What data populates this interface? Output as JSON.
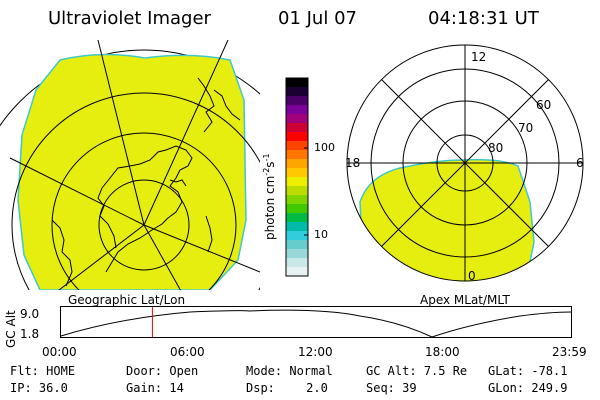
{
  "header": {
    "instrument": "Ultraviolet Imager",
    "date": "01 Jul 07",
    "time": "04:18:31 UT"
  },
  "left_map": {
    "caption": "Geographic Lat/Lon"
  },
  "right_map": {
    "caption": "Apex MLat/MLT",
    "mlt_labels": {
      "top": "12",
      "left": "18",
      "right": "6",
      "bottom": "0"
    },
    "lat_labels": [
      "60",
      "70",
      "80"
    ]
  },
  "colorbar": {
    "unit_base": "photon cm",
    "unit_exp1": "-2",
    "unit_s": "s",
    "unit_exp2": "-1",
    "ticks": [
      "100",
      "10"
    ],
    "colors": [
      "#000000",
      "#1a0033",
      "#4a0066",
      "#7a0099",
      "#a0007a",
      "#cc0033",
      "#ff0000",
      "#ff4400",
      "#ff7700",
      "#ffa500",
      "#ffc800",
      "#eeee00",
      "#bbdd00",
      "#7fd400",
      "#40c800",
      "#00bb44",
      "#00bbaa",
      "#33ccdd",
      "#66cccc",
      "#99d8d8",
      "#c8e8e8",
      "#e8f2f2"
    ]
  },
  "altitude_plot": {
    "ylabel": "GC Alt",
    "y_ticks": [
      "9.0",
      "1.8"
    ],
    "x_ticks": [
      "00:00",
      "06:00",
      "12:00",
      "18:00",
      "23:59"
    ],
    "current_time_hours": 4.3
  },
  "status": {
    "flt_label": "Flt:",
    "flt_value": "HOME",
    "ip_label": "IP:",
    "ip_value": "36.0",
    "door_label": "Door:",
    "door_value": "Open",
    "gain_label": "Gain:",
    "gain_value": "14",
    "mode_label": "Mode:",
    "mode_value": "Normal",
    "dsp_label": "Dsp:",
    "dsp_value": "2.0",
    "gcalt_label": "GC Alt:",
    "gcalt_value": "7.5 Re",
    "seq_label": "Seq:",
    "seq_value": "39",
    "glat_label": "GLat:",
    "glat_value": "-78.1",
    "glon_label": "GLon:",
    "glon_value": "249.9"
  },
  "colors": {
    "fill": "#e6ee10",
    "fill_edge": "#40c8c8",
    "marker": "#ee0000"
  }
}
